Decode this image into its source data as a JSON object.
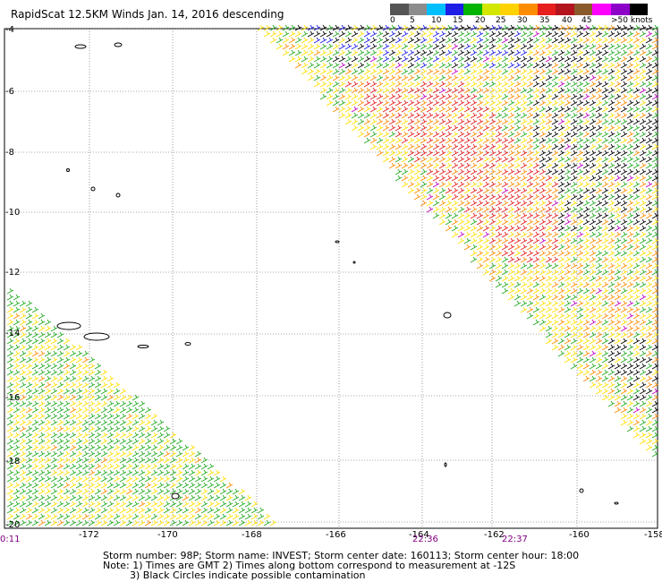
{
  "title": "RapidScat 12.5KM Winds Jan. 14, 2016 descending",
  "scale": {
    "colors": [
      "#555555",
      "#8c8c8c",
      "#00bfff",
      "#1e1ee6",
      "#00b400",
      "#d2e600",
      "#ffd200",
      "#ff8c00",
      "#e61e1e",
      "#b4141e",
      "#8b5a2b",
      "#ff00ff",
      "#8c00c8",
      "#000000"
    ],
    "labels": [
      "0",
      "5",
      "10",
      "15",
      "20",
      "25",
      "30",
      "35",
      "40",
      "45",
      ">50 knots"
    ]
  },
  "axes": {
    "lat_labels": [
      "-4",
      "-6",
      "-8",
      "-10",
      "-12",
      "-14",
      "-16",
      "-18",
      "-20"
    ],
    "lon_labels": [
      "-172",
      "-170",
      "-168",
      "-166",
      "-164",
      "-162",
      "-160",
      "-158"
    ]
  },
  "times": {
    "left": "0:11",
    "mid1": "22:36",
    "mid2": "22:37"
  },
  "footer": {
    "line1": "Storm number: 98P;  Storm name: INVEST;  Storm center date: 160113;  Storm center hour: 18:00",
    "line2": "Note: 1) Times are GMT  2) Times along bottom correspond to measurement at -12S",
    "line3": "3) Black Circles indicate possible contamination"
  },
  "wind_colors": {
    "green": "#22aa22",
    "yellow": "#ffe000",
    "orange": "#ff8c00",
    "red": "#e61e1e",
    "black": "#000000",
    "blue": "#1e1ee6",
    "purple": "#c000c0"
  }
}
